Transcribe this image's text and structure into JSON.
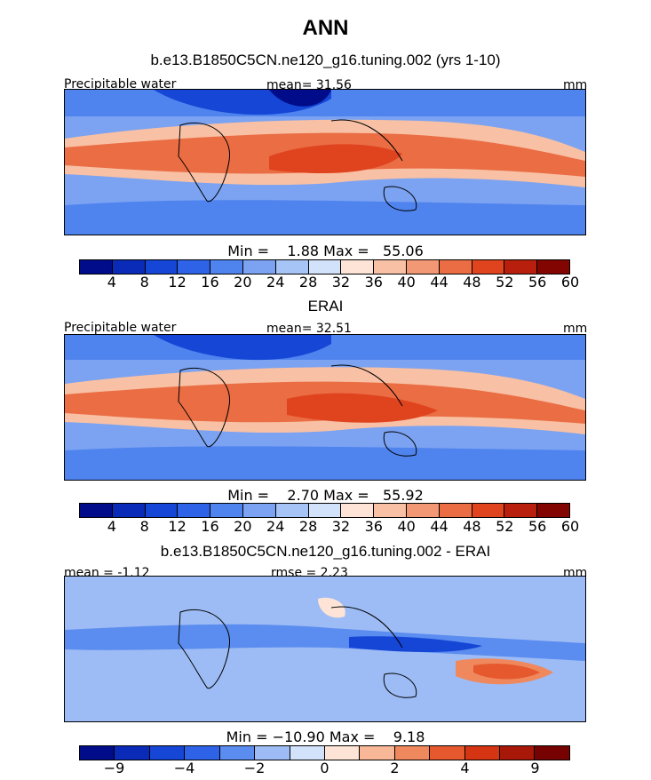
{
  "title": "ANN",
  "chart_data": [
    {
      "type": "heatmap",
      "panel": "model",
      "subtitle": "b.e13.B1850C5CN.ne120_g16.tuning.002 (yrs 1-10)",
      "variable": "Precipitable water",
      "mean_text": "mean=  31.56",
      "units": "mm",
      "min_max_text": "Min =    1.88 Max =   55.06",
      "min": 1.88,
      "max": 55.06,
      "mean": 31.56,
      "colorbar_levels": [
        "4",
        "8",
        "12",
        "16",
        "20",
        "24",
        "28",
        "32",
        "36",
        "40",
        "44",
        "48",
        "52",
        "56",
        "60"
      ]
    },
    {
      "type": "heatmap",
      "panel": "observations",
      "subtitle": "ERAI",
      "variable": "Precipitable water",
      "mean_text": "mean=  32.51",
      "units": "mm",
      "min_max_text": "Min =    2.70 Max =   55.92",
      "min": 2.7,
      "max": 55.92,
      "mean": 32.51,
      "colorbar_levels": [
        "4",
        "8",
        "12",
        "16",
        "20",
        "24",
        "28",
        "32",
        "36",
        "40",
        "44",
        "48",
        "52",
        "56",
        "60"
      ]
    },
    {
      "type": "heatmap",
      "panel": "difference",
      "subtitle": "b.e13.B1850C5CN.ne120_g16.tuning.002 - ERAI",
      "mean_text": "mean = -1.12",
      "rmse_text": "rmse =   2.23",
      "units": "mm",
      "min_max_text": "Min = −10.90 Max =    9.18",
      "min": -10.9,
      "max": 9.18,
      "mean": -1.12,
      "rmse": 2.23,
      "colorbar_levels": [
        "−9",
        "−4",
        "−2",
        "0",
        "2",
        "4",
        "9"
      ]
    }
  ],
  "colors": {
    "abs_scale": [
      "#000c8a",
      "#0a2bb8",
      "#1546d6",
      "#2e63e8",
      "#4f83ee",
      "#7ba3f2",
      "#a6c4f6",
      "#d2e2fa",
      "#fde4d6",
      "#f8c0a4",
      "#f29874",
      "#ea6d44",
      "#e0441f",
      "#b81f0c",
      "#820502"
    ],
    "diff_scale": [
      "#000c8a",
      "#0a2bb8",
      "#1546d6",
      "#2e63e8",
      "#5b8cef",
      "#9dbcf5",
      "#d2e2fa",
      "#fde4d6",
      "#f8b898",
      "#f0885e",
      "#e6592f",
      "#d53512",
      "#a81808",
      "#760301"
    ]
  }
}
